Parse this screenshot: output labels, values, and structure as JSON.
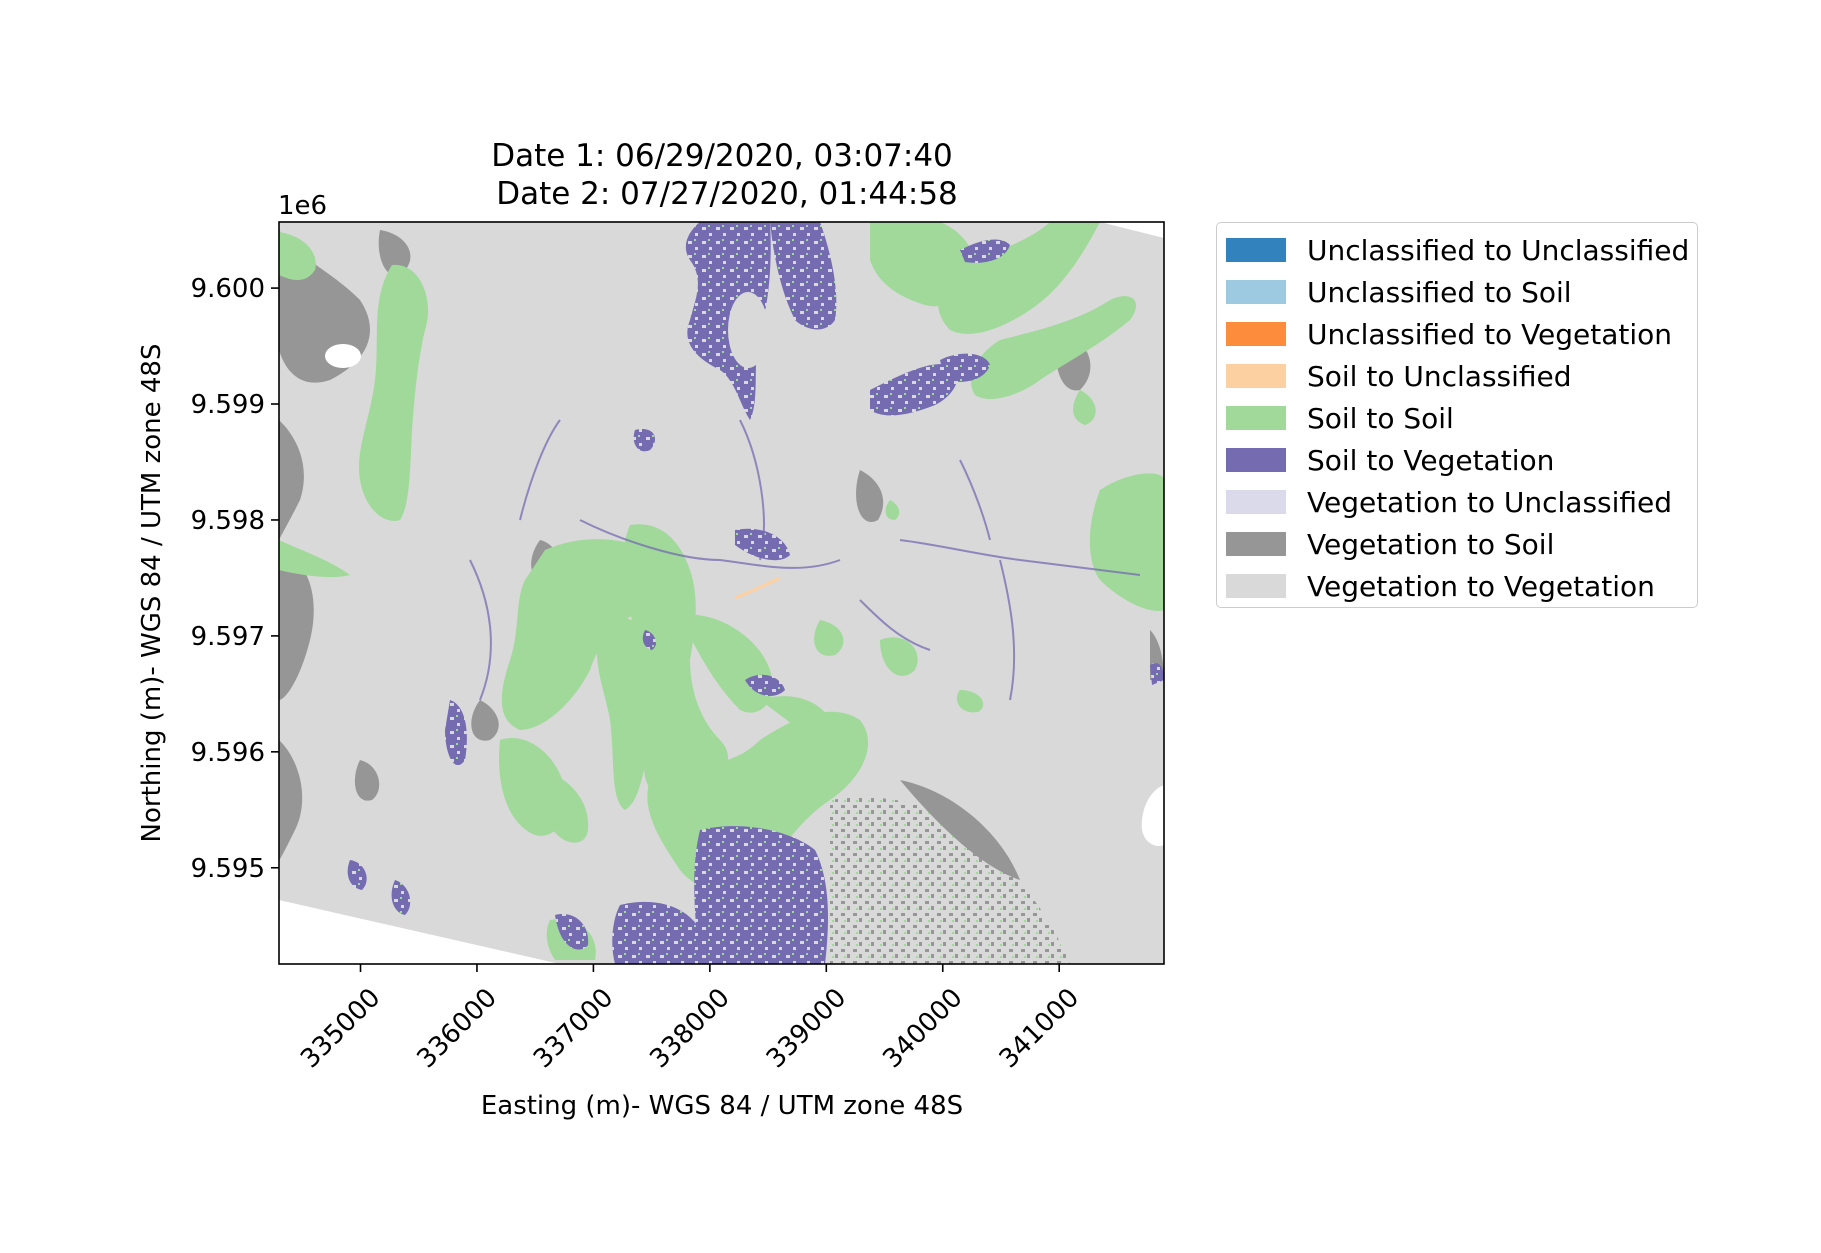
{
  "chart_data": {
    "type": "heatmap",
    "title_line1": "Date 1: 06/29/2020, 03:07:40",
    "title_line2": "Date 2: 07/27/2020, 01:44:58",
    "xlabel": "Easting (m)- WGS 84 / UTM zone 48S",
    "ylabel": "Northing (m)- WGS 84 / UTM zone 48S",
    "y_offset_label": "1e6",
    "x_ticks": [
      "335000",
      "336000",
      "337000",
      "338000",
      "339000",
      "340000",
      "341000"
    ],
    "y_ticks": [
      "9.600",
      "9.599",
      "9.598",
      "9.597",
      "9.596",
      "9.595"
    ],
    "xlim": [
      334300,
      341900
    ],
    "ylim": [
      9594170,
      9600570
    ],
    "grid": false,
    "legend_position": "outside right, top",
    "classes": [
      {
        "name": "Unclassified to Unclassified",
        "color": "#3182bd"
      },
      {
        "name": "Unclassified to Soil",
        "color": "#9ecae1"
      },
      {
        "name": "Unclassified to Vegetation",
        "color": "#fd8d3c"
      },
      {
        "name": "Soil to Unclassified",
        "color": "#fdd0a2"
      },
      {
        "name": "Soil to Soil",
        "color": "#a1d99b"
      },
      {
        "name": "Soil to Vegetation",
        "color": "#756bb1"
      },
      {
        "name": "Vegetation to Unclassified",
        "color": "#dadaeb"
      },
      {
        "name": "Vegetation to Soil",
        "color": "#969696"
      },
      {
        "name": "Vegetation to Vegetation",
        "color": "#d9d9d9"
      }
    ]
  }
}
